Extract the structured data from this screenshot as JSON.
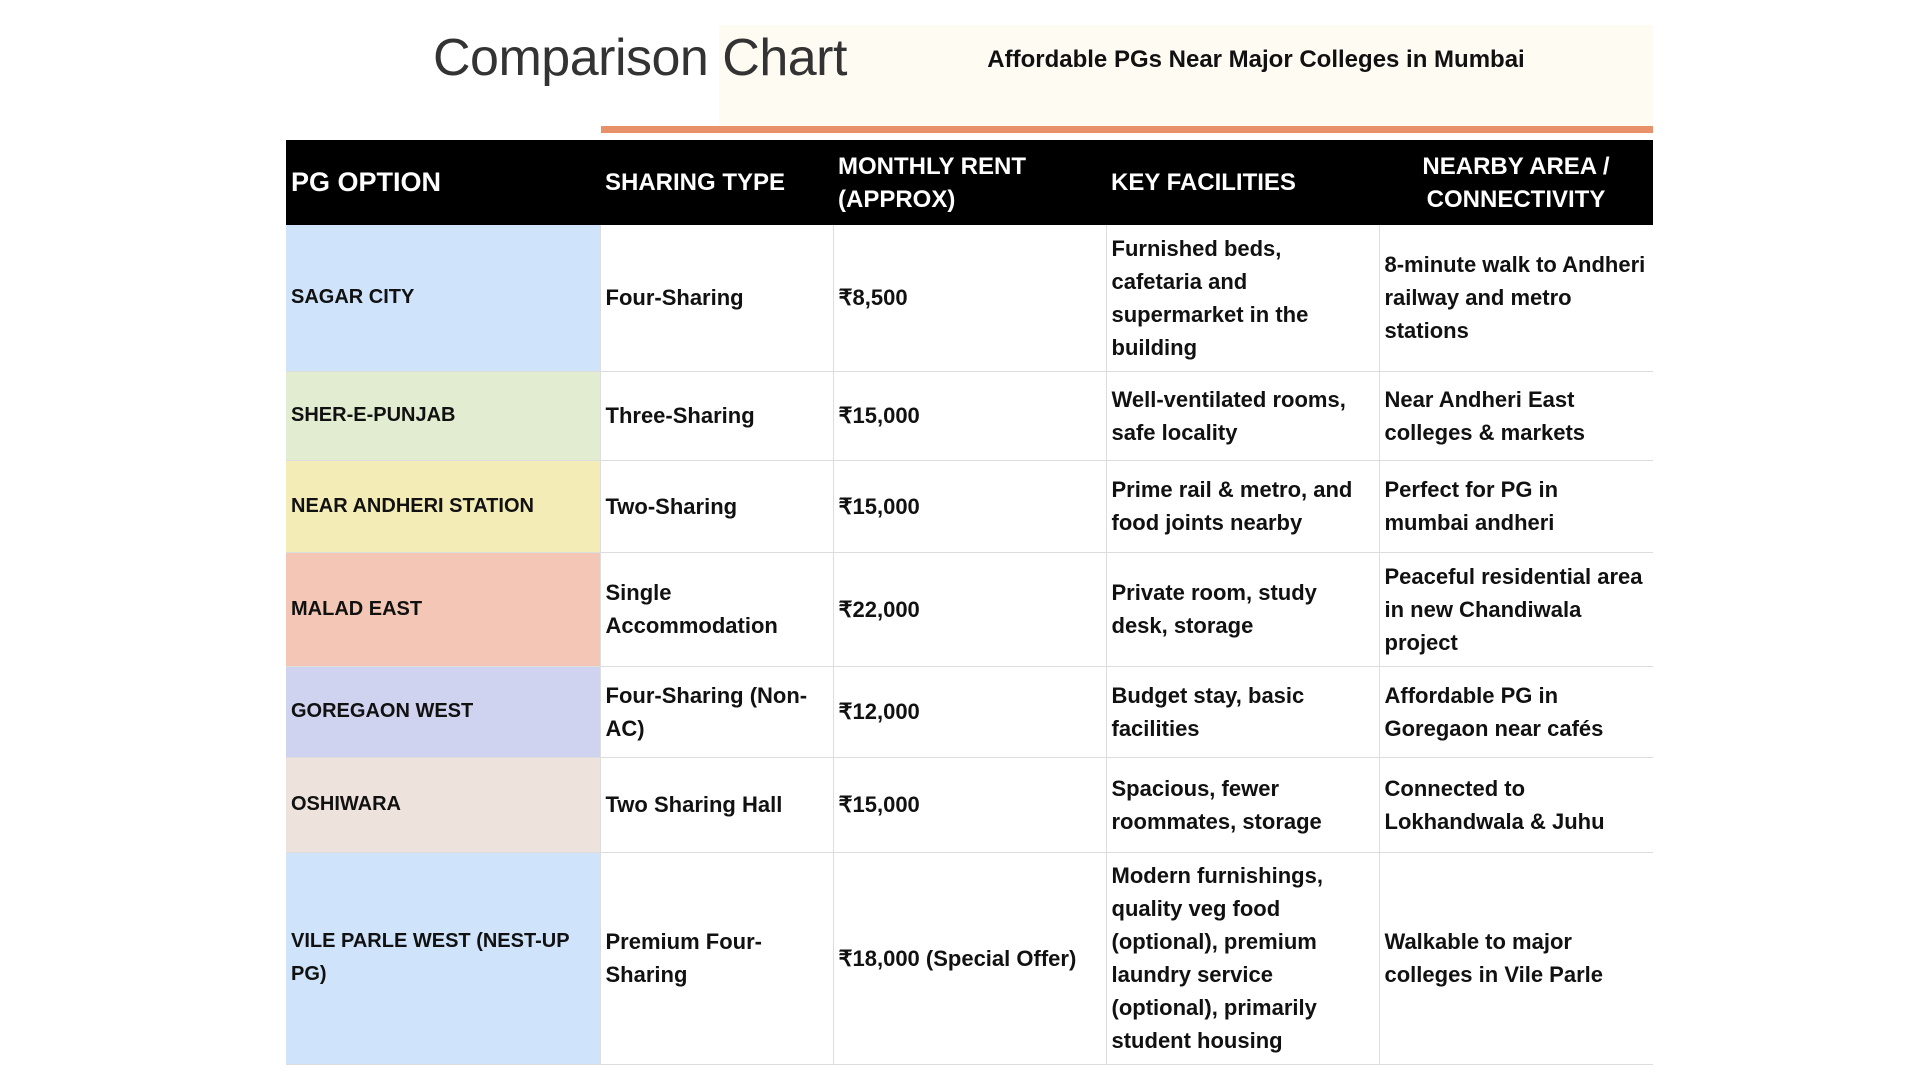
{
  "header": {
    "title": "Comparison Chart",
    "subtitle": "Affordable PGs Near Major Colleges in Mumbai"
  },
  "table": {
    "columns": [
      "PG OPTION",
      "SHARING TYPE",
      "MONTHLY RENT (APPROX)",
      "KEY FACILITIES",
      "NEARBY AREA / CONNECTIVITY"
    ],
    "rows": [
      [
        "SAGAR CITY",
        "Four-Sharing",
        "₹8,500",
        "Furnished beds, cafetaria and supermarket in the building",
        "8-minute walk to Andheri railway and metro stations"
      ],
      [
        "SHER-E-PUNJAB",
        "Three-Sharing",
        "₹15,000",
        "Well-ventilated rooms, safe locality",
        "Near Andheri East colleges & markets"
      ],
      [
        "NEAR ANDHERI STATION",
        "Two-Sharing",
        "₹15,000",
        "Prime rail & metro, and food joints nearby",
        "Perfect for PG in mumbai andheri"
      ],
      [
        "MALAD EAST",
        "Single Accommodation",
        "₹22,000",
        "Private room, study desk, storage",
        "Peaceful residential area in new Chandiwala project"
      ],
      [
        "GOREGAON WEST",
        "Four-Sharing (Non-AC)",
        "₹12,000",
        "Budget stay, basic facilities",
        "Affordable PG in Goregaon near cafés"
      ],
      [
        "OSHIWARA",
        "Two Sharing Hall",
        "₹15,000",
        "Spacious, fewer roommates, storage",
        "Connected to Lokhandwala & Juhu"
      ],
      [
        "VILE PARLE WEST (NEST-UP PG)",
        "Premium Four-Sharing",
        "₹18,000 (Special Offer)",
        "Modern furnishings, quality veg food (optional), premium laundry service (optional), primarily student housing",
        "Walkable to major colleges in Vile Parle"
      ]
    ]
  }
}
